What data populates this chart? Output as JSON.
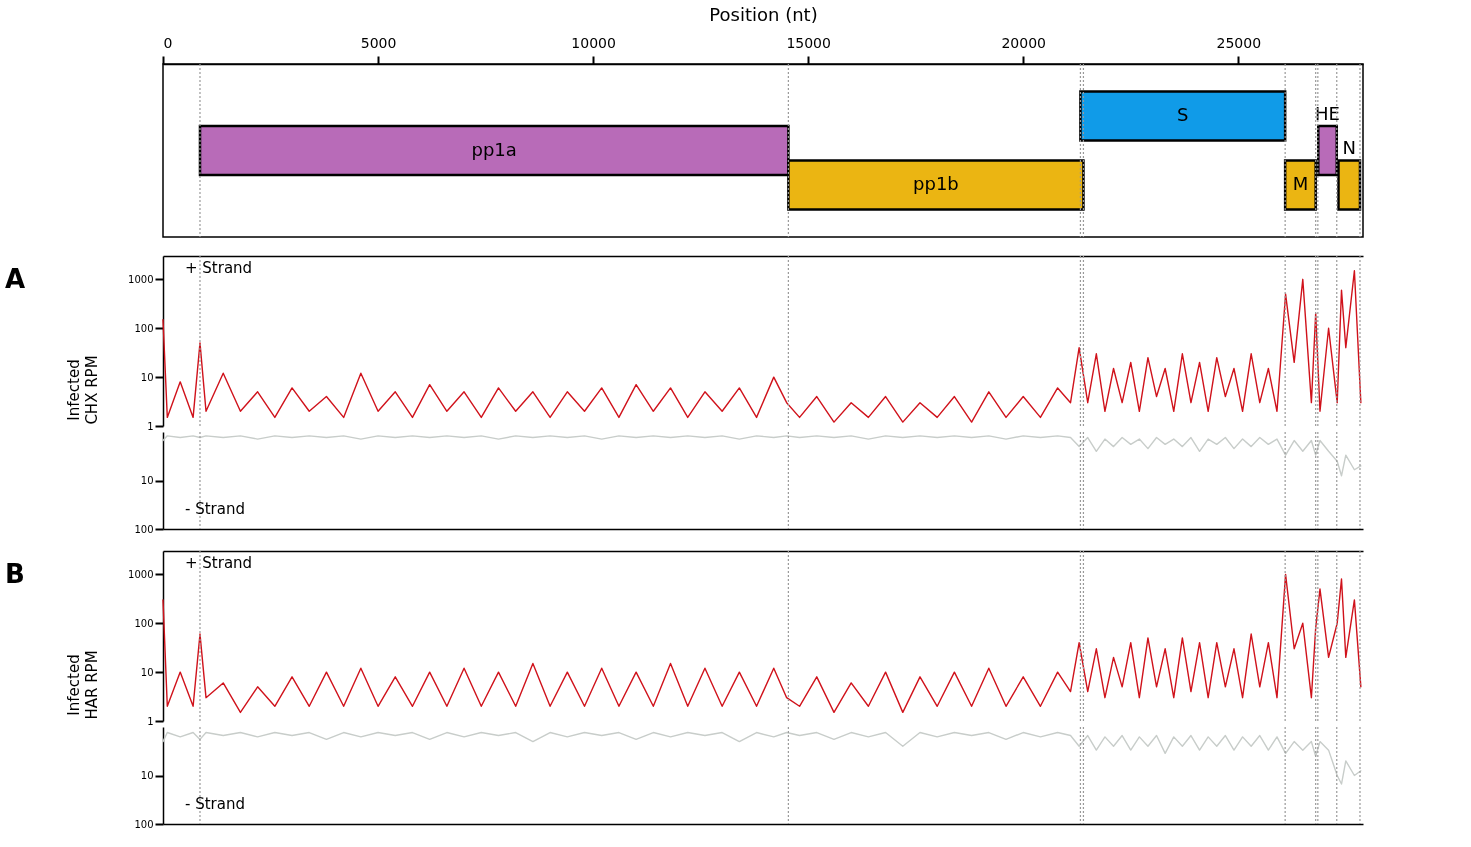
{
  "chart_data": [
    {
      "type": "bar",
      "orientation": "horizontal",
      "xlabel": "Position (nt)",
      "xlim": [
        0,
        27900
      ],
      "xticks": [
        0,
        5000,
        10000,
        15000,
        20000,
        25000
      ],
      "tick_labels": "x",
      "categories": [
        null,
        null,
        null
      ],
      "series": [
        {
          "name": "pp1a",
          "color": "#b86bb8",
          "base": [
            null,
            860,
            null
          ],
          "values": [
            null,
            13680,
            null
          ]
        },
        {
          "name": "pp1b",
          "color": "#ebb512",
          "base": [
            null,
            null,
            14540
          ],
          "values": [
            null,
            null,
            6860
          ]
        },
        {
          "name": "S",
          "color": "#109be8",
          "base": [
            21330,
            null,
            null
          ],
          "values": [
            4760,
            null,
            null
          ]
        },
        {
          "name": "M",
          "color": "#ebb512",
          "base": [
            null,
            null,
            26090
          ],
          "values": [
            null,
            null,
            710
          ]
        },
        {
          "name": "HE",
          "color": "#b86bb8",
          "base": [
            null,
            26860,
            null
          ],
          "values": [
            null,
            430,
            null
          ]
        },
        {
          "name": "N",
          "color": "#ebb512",
          "base": [
            null,
            null,
            27330
          ],
          "values": [
            null,
            null,
            500
          ]
        }
      ],
      "ref_lines": [
        {
          "axis": "x",
          "value": 860,
          "color": "#999999",
          "line_style": "dotted"
        },
        {
          "axis": "x",
          "value": 14540,
          "color": "#999999",
          "line_style": "dotted"
        },
        {
          "axis": "x",
          "value": 21330,
          "color": "#999999",
          "line_style": "dotted"
        },
        {
          "axis": "x",
          "value": 21400,
          "color": "#999999",
          "line_style": "dotted"
        },
        {
          "axis": "x",
          "value": 26090,
          "color": "#999999",
          "line_style": "dotted"
        },
        {
          "axis": "x",
          "value": 26800,
          "color": "#999999",
          "line_style": "dotted"
        },
        {
          "axis": "x",
          "value": 26850,
          "color": "#999999",
          "line_style": "dotted"
        },
        {
          "axis": "x",
          "value": 27290,
          "color": "#999999",
          "line_style": "dotted"
        },
        {
          "axis": "x",
          "value": 27830,
          "color": "#999999",
          "line_style": "dotted"
        }
      ]
    },
    {
      "type": "line",
      "log": "y",
      "ylabel": "Infected\nCHX RPM",
      "xlim": [
        0,
        27900
      ],
      "ylim": [
        1,
        3000
      ],
      "yticks": [
        1,
        10,
        100,
        1000
      ],
      "tick_labels": "y",
      "annotations": [
        "A",
        "+ Strand"
      ],
      "x": [
        0,
        100,
        400,
        700,
        860,
        1000,
        1400,
        1800,
        2200,
        2600,
        3000,
        3400,
        3800,
        4200,
        4600,
        5000,
        5400,
        5800,
        6200,
        6600,
        7000,
        7400,
        7800,
        8200,
        8600,
        9000,
        9400,
        9800,
        10200,
        10600,
        11000,
        11400,
        11800,
        12200,
        12600,
        13000,
        13400,
        13800,
        14200,
        14500,
        14800,
        15200,
        15600,
        16000,
        16400,
        16800,
        17200,
        17600,
        18000,
        18400,
        18800,
        19200,
        19600,
        20000,
        20400,
        20800,
        21100,
        21300,
        21500,
        21700,
        21900,
        22100,
        22300,
        22500,
        22700,
        22900,
        23100,
        23300,
        23500,
        23700,
        23900,
        24100,
        24300,
        24500,
        24700,
        24900,
        25100,
        25300,
        25500,
        25700,
        25900,
        26100,
        26300,
        26500,
        26700,
        26800,
        26900,
        27100,
        27300,
        27400,
        27500,
        27700,
        27850
      ],
      "series": [
        {
          "color": "#d0121b",
          "values": [
            150,
            1.5,
            8,
            1.5,
            50,
            2,
            12,
            2,
            5,
            1.5,
            6,
            2,
            4,
            1.5,
            12,
            2,
            5,
            1.5,
            7,
            2,
            5,
            1.5,
            6,
            2,
            5,
            1.5,
            5,
            2,
            6,
            1.5,
            7,
            2,
            6,
            1.5,
            5,
            2,
            6,
            1.5,
            10,
            3,
            1.5,
            4,
            1.2,
            3,
            1.5,
            4,
            1.2,
            3,
            1.5,
            4,
            1.2,
            5,
            1.5,
            4,
            1.5,
            6,
            3,
            40,
            3,
            30,
            2,
            15,
            3,
            20,
            2,
            25,
            4,
            15,
            2,
            30,
            3,
            20,
            2,
            25,
            4,
            15,
            2,
            30,
            3,
            15,
            2,
            500,
            20,
            1000,
            3,
            200,
            2,
            100,
            3,
            600,
            40,
            1500,
            3
          ]
        }
      ],
      "ref_lines": [
        {
          "axis": "x",
          "value": 860,
          "color": "#999999",
          "line_style": "dotted"
        },
        {
          "axis": "x",
          "value": 14540,
          "color": "#999999",
          "line_style": "dotted"
        },
        {
          "axis": "x",
          "value": 21330,
          "color": "#999999",
          "line_style": "dotted"
        },
        {
          "axis": "x",
          "value": 21400,
          "color": "#999999",
          "line_style": "dotted"
        },
        {
          "axis": "x",
          "value": 26090,
          "color": "#999999",
          "line_style": "dotted"
        },
        {
          "axis": "x",
          "value": 26800,
          "color": "#999999",
          "line_style": "dotted"
        },
        {
          "axis": "x",
          "value": 26850,
          "color": "#999999",
          "line_style": "dotted"
        },
        {
          "axis": "x",
          "value": 27290,
          "color": "#999999",
          "line_style": "dotted"
        },
        {
          "axis": "x",
          "value": 27830,
          "color": "#999999",
          "line_style": "dotted"
        }
      ]
    },
    {
      "type": "line",
      "log": "y",
      "xlim": [
        0,
        27900
      ],
      "ylim": [
        100,
        1
      ],
      "yticks": [
        10,
        100
      ],
      "tick_labels": "y",
      "annotations": [
        "- Strand"
      ],
      "x": [
        0,
        100,
        400,
        700,
        860,
        1000,
        1400,
        1800,
        2200,
        2600,
        3000,
        3400,
        3800,
        4200,
        4600,
        5000,
        5400,
        5800,
        6200,
        6600,
        7000,
        7400,
        7800,
        8200,
        8600,
        9000,
        9400,
        9800,
        10200,
        10600,
        11000,
        11400,
        11800,
        12200,
        12600,
        13000,
        13400,
        13800,
        14200,
        14500,
        14800,
        15200,
        15600,
        16000,
        16400,
        16800,
        17200,
        17600,
        18000,
        18400,
        18800,
        19200,
        19600,
        20000,
        20400,
        20800,
        21100,
        21300,
        21500,
        21700,
        21900,
        22100,
        22300,
        22500,
        22700,
        22900,
        23100,
        23300,
        23500,
        23700,
        23900,
        24100,
        24300,
        24500,
        24700,
        24900,
        25100,
        25300,
        25500,
        25700,
        25900,
        26100,
        26300,
        26500,
        26700,
        26800,
        26900,
        27100,
        27300,
        27400,
        27500,
        27700,
        27850
      ],
      "series": [
        {
          "color": "#c8cdca",
          "values": [
            1.5,
            1.2,
            1.3,
            1.2,
            1.3,
            1.2,
            1.3,
            1.2,
            1.4,
            1.2,
            1.3,
            1.2,
            1.3,
            1.2,
            1.4,
            1.2,
            1.3,
            1.2,
            1.3,
            1.2,
            1.3,
            1.2,
            1.4,
            1.2,
            1.3,
            1.2,
            1.3,
            1.2,
            1.4,
            1.2,
            1.3,
            1.2,
            1.3,
            1.2,
            1.3,
            1.2,
            1.4,
            1.2,
            1.3,
            1.2,
            1.3,
            1.2,
            1.3,
            1.2,
            1.4,
            1.2,
            1.3,
            1.2,
            1.3,
            1.2,
            1.3,
            1.2,
            1.4,
            1.2,
            1.3,
            1.2,
            1.3,
            2,
            1.3,
            2.5,
            1.4,
            2,
            1.3,
            1.8,
            1.4,
            2.2,
            1.3,
            1.8,
            1.4,
            2,
            1.3,
            2.5,
            1.4,
            1.8,
            1.3,
            2.2,
            1.4,
            2,
            1.3,
            1.8,
            1.4,
            3,
            1.5,
            2.5,
            1.5,
            3,
            1.5,
            2.5,
            4,
            8,
            3,
            6,
            5
          ]
        }
      ],
      "ref_lines": [
        {
          "axis": "x",
          "value": 860,
          "color": "#999999",
          "line_style": "dotted"
        },
        {
          "axis": "x",
          "value": 14540,
          "color": "#999999",
          "line_style": "dotted"
        },
        {
          "axis": "x",
          "value": 21330,
          "color": "#999999",
          "line_style": "dotted"
        },
        {
          "axis": "x",
          "value": 21400,
          "color": "#999999",
          "line_style": "dotted"
        },
        {
          "axis": "x",
          "value": 26090,
          "color": "#999999",
          "line_style": "dotted"
        },
        {
          "axis": "x",
          "value": 26800,
          "color": "#999999",
          "line_style": "dotted"
        },
        {
          "axis": "x",
          "value": 26850,
          "color": "#999999",
          "line_style": "dotted"
        },
        {
          "axis": "x",
          "value": 27290,
          "color": "#999999",
          "line_style": "dotted"
        },
        {
          "axis": "x",
          "value": 27830,
          "color": "#999999",
          "line_style": "dotted"
        }
      ]
    },
    {
      "type": "line",
      "log": "y",
      "ylabel": "Infected\nHAR RPM",
      "xlim": [
        0,
        27900
      ],
      "ylim": [
        1,
        3000
      ],
      "yticks": [
        1,
        10,
        100,
        1000
      ],
      "tick_labels": "y",
      "annotations": [
        "B",
        "+ Strand"
      ],
      "x": [
        0,
        100,
        400,
        700,
        860,
        1000,
        1400,
        1800,
        2200,
        2600,
        3000,
        3400,
        3800,
        4200,
        4600,
        5000,
        5400,
        5800,
        6200,
        6600,
        7000,
        7400,
        7800,
        8200,
        8600,
        9000,
        9400,
        9800,
        10200,
        10600,
        11000,
        11400,
        11800,
        12200,
        12600,
        13000,
        13400,
        13800,
        14200,
        14500,
        14800,
        15200,
        15600,
        16000,
        16400,
        16800,
        17200,
        17600,
        18000,
        18400,
        18800,
        19200,
        19600,
        20000,
        20400,
        20800,
        21100,
        21300,
        21500,
        21700,
        21900,
        22100,
        22300,
        22500,
        22700,
        22900,
        23100,
        23300,
        23500,
        23700,
        23900,
        24100,
        24300,
        24500,
        24700,
        24900,
        25100,
        25300,
        25500,
        25700,
        25900,
        26100,
        26300,
        26500,
        26700,
        26800,
        26900,
        27100,
        27300,
        27400,
        27500,
        27700,
        27850
      ],
      "series": [
        {
          "color": "#d0121b",
          "values": [
            300,
            2,
            10,
            2,
            60,
            3,
            6,
            1.5,
            5,
            2,
            8,
            2,
            10,
            2,
            12,
            2,
            8,
            2,
            10,
            2,
            12,
            2,
            10,
            2,
            15,
            2,
            10,
            2,
            12,
            2,
            10,
            2,
            15,
            2,
            12,
            2,
            10,
            2,
            12,
            3,
            2,
            8,
            1.5,
            6,
            2,
            10,
            1.5,
            8,
            2,
            10,
            2,
            12,
            2,
            8,
            2,
            10,
            4,
            40,
            4,
            30,
            3,
            20,
            5,
            40,
            3,
            50,
            5,
            30,
            3,
            50,
            4,
            40,
            3,
            40,
            5,
            30,
            3,
            60,
            5,
            40,
            3,
            1000,
            30,
            100,
            3,
            80,
            500,
            20,
            100,
            800,
            20,
            300,
            5
          ]
        }
      ],
      "ref_lines": [
        {
          "axis": "x",
          "value": 860,
          "color": "#999999",
          "line_style": "dotted"
        },
        {
          "axis": "x",
          "value": 14540,
          "color": "#999999",
          "line_style": "dotted"
        },
        {
          "axis": "x",
          "value": 21330,
          "color": "#999999",
          "line_style": "dotted"
        },
        {
          "axis": "x",
          "value": 21400,
          "color": "#999999",
          "line_style": "dotted"
        },
        {
          "axis": "x",
          "value": 26090,
          "color": "#999999",
          "line_style": "dotted"
        },
        {
          "axis": "x",
          "value": 26800,
          "color": "#999999",
          "line_style": "dotted"
        },
        {
          "axis": "x",
          "value": 26850,
          "color": "#999999",
          "line_style": "dotted"
        },
        {
          "axis": "x",
          "value": 27290,
          "color": "#999999",
          "line_style": "dotted"
        },
        {
          "axis": "x",
          "value": 27830,
          "color": "#999999",
          "line_style": "dotted"
        }
      ]
    },
    {
      "type": "line",
      "log": "y",
      "xlim": [
        0,
        27900
      ],
      "ylim": [
        100,
        1
      ],
      "yticks": [
        10,
        100
      ],
      "tick_labels": "y",
      "annotations": [
        "- Strand"
      ],
      "x": [
        0,
        100,
        400,
        700,
        860,
        1000,
        1400,
        1800,
        2200,
        2600,
        3000,
        3400,
        3800,
        4200,
        4600,
        5000,
        5400,
        5800,
        6200,
        6600,
        7000,
        7400,
        7800,
        8200,
        8600,
        9000,
        9400,
        9800,
        10200,
        10600,
        11000,
        11400,
        11800,
        12200,
        12600,
        13000,
        13400,
        13800,
        14200,
        14500,
        14800,
        15200,
        15600,
        16000,
        16400,
        16800,
        17200,
        17600,
        18000,
        18400,
        18800,
        19200,
        19600,
        20000,
        20400,
        20800,
        21100,
        21300,
        21500,
        21700,
        21900,
        22100,
        22300,
        22500,
        22700,
        22900,
        23100,
        23300,
        23500,
        23700,
        23900,
        24100,
        24300,
        24500,
        24700,
        24900,
        25100,
        25300,
        25500,
        25700,
        25900,
        26100,
        26300,
        26500,
        26700,
        26800,
        26900,
        27100,
        27300,
        27400,
        27500,
        27700,
        27850
      ],
      "series": [
        {
          "color": "#c8cdca",
          "values": [
            2,
            1.3,
            1.6,
            1.3,
            1.8,
            1.3,
            1.5,
            1.3,
            1.6,
            1.3,
            1.5,
            1.3,
            1.8,
            1.3,
            1.6,
            1.3,
            1.5,
            1.3,
            1.8,
            1.3,
            1.6,
            1.3,
            1.5,
            1.3,
            2,
            1.3,
            1.6,
            1.3,
            1.5,
            1.3,
            1.8,
            1.3,
            1.6,
            1.3,
            1.5,
            1.3,
            2,
            1.3,
            1.6,
            1.3,
            1.5,
            1.3,
            1.8,
            1.3,
            1.6,
            1.3,
            2.5,
            1.3,
            1.6,
            1.3,
            1.5,
            1.3,
            1.8,
            1.3,
            1.6,
            1.3,
            1.5,
            2.5,
            1.5,
            3,
            1.6,
            2.5,
            1.5,
            3,
            1.6,
            2.5,
            1.5,
            3.5,
            1.6,
            2.5,
            1.5,
            3,
            1.6,
            2.5,
            1.5,
            3,
            1.6,
            2.5,
            1.5,
            3,
            1.6,
            3.5,
            2,
            3,
            2,
            4,
            2,
            3,
            10,
            15,
            5,
            10,
            8
          ]
        }
      ],
      "ref_lines": [
        {
          "axis": "x",
          "value": 860,
          "color": "#999999",
          "line_style": "dotted"
        },
        {
          "axis": "x",
          "value": 14540,
          "color": "#999999",
          "line_style": "dotted"
        },
        {
          "axis": "x",
          "value": 21330,
          "color": "#999999",
          "line_style": "dotted"
        },
        {
          "axis": "x",
          "value": 21400,
          "color": "#999999",
          "line_style": "dotted"
        },
        {
          "axis": "x",
          "value": 26090,
          "color": "#999999",
          "line_style": "dotted"
        },
        {
          "axis": "x",
          "value": 26800,
          "color": "#999999",
          "line_style": "dotted"
        },
        {
          "axis": "x",
          "value": 26850,
          "color": "#999999",
          "line_style": "dotted"
        },
        {
          "axis": "x",
          "value": 27290,
          "color": "#999999",
          "line_style": "dotted"
        },
        {
          "axis": "x",
          "value": 27830,
          "color": "#999999",
          "line_style": "dotted"
        }
      ]
    }
  ]
}
